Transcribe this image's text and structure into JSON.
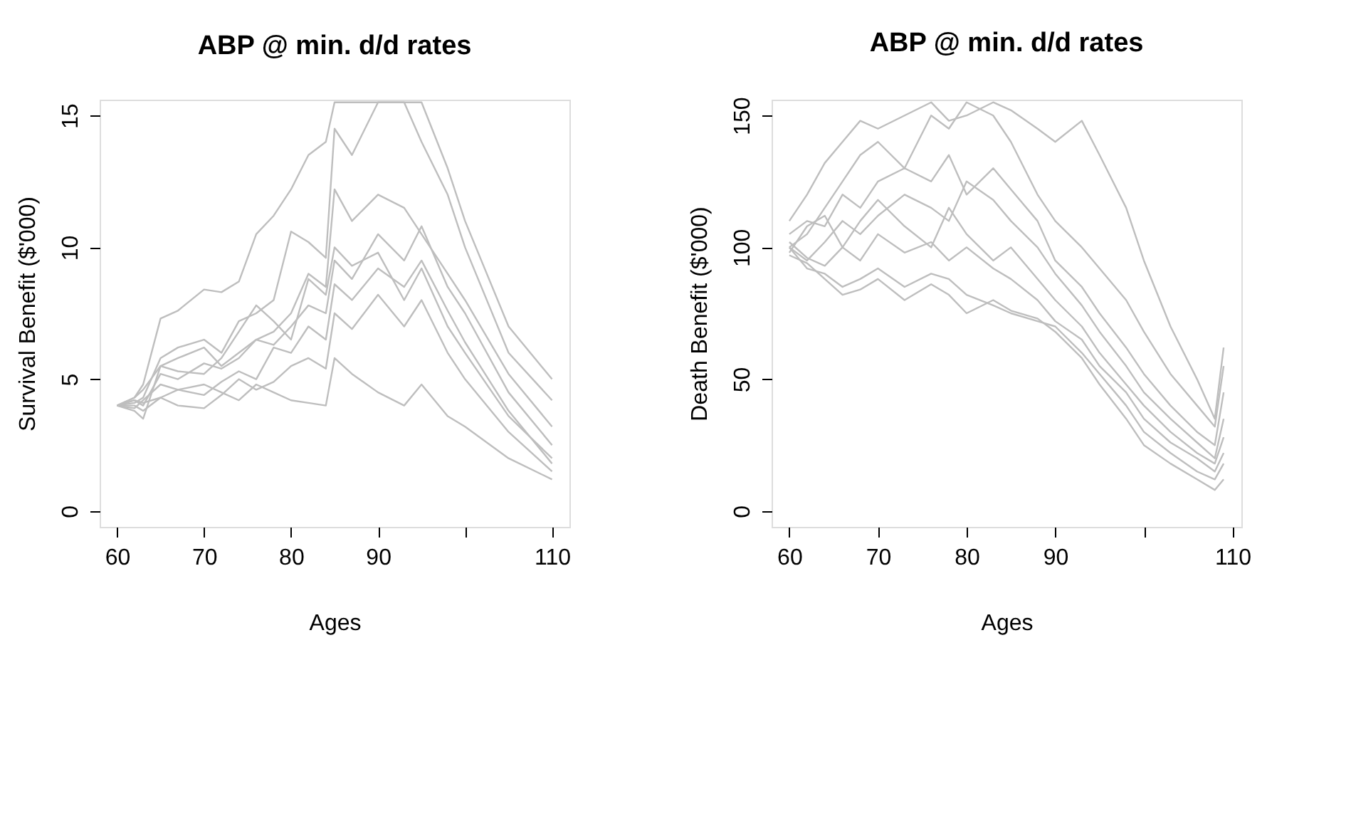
{
  "chart_data": [
    {
      "type": "line",
      "title": "ABP @ min. d/d rates",
      "xlabel": "Ages",
      "ylabel": "Survival Benefit ($'000)",
      "xlim": [
        58,
        112
      ],
      "xticks": [
        60,
        70,
        80,
        90,
        {
          "value": 100,
          "label": null
        },
        110
      ],
      "ylim": [
        -0.6,
        15.6
      ],
      "yticks": [
        0,
        5,
        10,
        15
      ],
      "grid": false,
      "legend": false,
      "x": [
        60,
        62,
        63,
        65,
        67,
        70,
        72,
        74,
        76,
        78,
        80,
        82,
        84,
        85,
        87,
        90,
        93,
        95,
        98,
        100,
        105,
        110
      ],
      "series": [
        {
          "color": "#bebebe",
          "values": [
            4,
            4.3,
            4.8,
            7.3,
            7.6,
            8.4,
            8.3,
            8.7,
            10.5,
            11.2,
            12.2,
            13.5,
            14,
            15.5,
            15.5,
            15.5,
            15.5,
            15.5,
            13,
            11,
            7,
            5
          ]
        },
        {
          "color": "#bebebe",
          "values": [
            4,
            4.1,
            4.3,
            5.8,
            6.2,
            6.5,
            6.0,
            7.2,
            7.5,
            8,
            10.6,
            10.2,
            9.6,
            14.5,
            13.5,
            15.5,
            15.5,
            14,
            12,
            10,
            6,
            4.2
          ]
        },
        {
          "color": "#bebebe",
          "values": [
            4,
            3.8,
            3.5,
            5.5,
            5.8,
            6.2,
            5.5,
            6.0,
            6.5,
            6.8,
            7.5,
            9.0,
            8.5,
            12.2,
            11,
            12,
            11.5,
            10.5,
            9,
            8,
            5.2,
            3.2
          ]
        },
        {
          "color": "#bebebe",
          "values": [
            4,
            4.2,
            4.0,
            5.2,
            5.0,
            5.6,
            5.4,
            5.8,
            6.5,
            6.3,
            7.0,
            7.8,
            7.5,
            9.5,
            8.8,
            10.5,
            9.5,
            10.8,
            8.5,
            7.5,
            4.5,
            2.5
          ]
        },
        {
          "color": "#bebebe",
          "values": [
            4,
            4.3,
            4.6,
            5.5,
            5.3,
            5.2,
            5.8,
            6.8,
            7.8,
            7.2,
            6.5,
            8.8,
            8.2,
            10,
            9.3,
            9.8,
            8.0,
            9.2,
            7.0,
            6.0,
            3.6,
            2.0
          ]
        },
        {
          "color": "#bebebe",
          "values": [
            4,
            3.9,
            4.2,
            4.8,
            4.6,
            4.4,
            4.9,
            5.3,
            5.0,
            6.2,
            6.0,
            7.0,
            6.5,
            8.6,
            8.0,
            9.2,
            8.5,
            9.5,
            7.6,
            6.4,
            3.8,
            1.8
          ]
        },
        {
          "color": "#bebebe",
          "values": [
            4,
            4.0,
            3.8,
            4.3,
            4.0,
            3.9,
            4.4,
            5.0,
            4.6,
            4.9,
            5.5,
            5.8,
            5.4,
            7.5,
            6.9,
            8.2,
            7.0,
            8.0,
            6.0,
            5.0,
            3.0,
            1.5
          ]
        },
        {
          "color": "#bebebe",
          "values": [
            4,
            4.2,
            4.1,
            4.3,
            4.6,
            4.8,
            4.5,
            4.2,
            4.8,
            4.5,
            4.2,
            4.1,
            4.0,
            5.8,
            5.2,
            4.5,
            4.0,
            4.8,
            3.6,
            3.2,
            2.0,
            1.2
          ]
        }
      ]
    },
    {
      "type": "line",
      "title": "ABP @ min. d/d rates",
      "xlabel": "Ages",
      "ylabel": "Death Benefit ($'000)",
      "xlim": [
        58,
        111
      ],
      "xticks": [
        60,
        70,
        80,
        90,
        {
          "value": 100,
          "label": null
        },
        110
      ],
      "ylim": [
        -6,
        156
      ],
      "yticks": [
        0,
        50,
        100,
        150
      ],
      "grid": false,
      "legend": false,
      "x": [
        60,
        62,
        64,
        66,
        68,
        70,
        73,
        76,
        78,
        80,
        83,
        85,
        88,
        90,
        93,
        95,
        98,
        100,
        103,
        106,
        108,
        109
      ],
      "series": [
        {
          "color": "#bebebe",
          "values": [
            110,
            120,
            132,
            140,
            148,
            145,
            150,
            155,
            148,
            150,
            155,
            152,
            145,
            140,
            148,
            135,
            115,
            95,
            70,
            50,
            35,
            62
          ]
        },
        {
          "color": "#bebebe",
          "values": [
            100,
            105,
            115,
            125,
            135,
            140,
            130,
            150,
            145,
            155,
            150,
            140,
            120,
            110,
            100,
            92,
            80,
            68,
            52,
            40,
            32,
            55
          ]
        },
        {
          "color": "#bebebe",
          "values": [
            105,
            110,
            108,
            120,
            115,
            125,
            130,
            125,
            135,
            120,
            130,
            122,
            110,
            95,
            85,
            75,
            62,
            52,
            40,
            30,
            25,
            45
          ]
        },
        {
          "color": "#bebebe",
          "values": [
            100,
            95,
            102,
            110,
            105,
            112,
            120,
            115,
            110,
            125,
            118,
            110,
            100,
            90,
            78,
            68,
            55,
            45,
            35,
            26,
            20,
            35
          ]
        },
        {
          "color": "#bebebe",
          "values": [
            98,
            108,
            112,
            100,
            110,
            118,
            108,
            100,
            115,
            105,
            95,
            100,
            88,
            80,
            70,
            60,
            48,
            40,
            30,
            22,
            18,
            28
          ]
        },
        {
          "color": "#bebebe",
          "values": [
            102,
            96,
            93,
            100,
            95,
            105,
            98,
            102,
            95,
            100,
            92,
            88,
            80,
            72,
            65,
            55,
            45,
            35,
            26,
            20,
            15,
            22
          ]
        },
        {
          "color": "#bebebe",
          "values": [
            100,
            92,
            90,
            85,
            88,
            92,
            85,
            90,
            88,
            82,
            78,
            75,
            72,
            70,
            60,
            52,
            40,
            30,
            22,
            15,
            12,
            18
          ]
        },
        {
          "color": "#bebebe",
          "values": [
            97,
            94,
            88,
            82,
            84,
            88,
            80,
            86,
            82,
            75,
            80,
            76,
            73,
            68,
            58,
            48,
            35,
            25,
            18,
            12,
            8,
            12
          ]
        }
      ]
    }
  ]
}
